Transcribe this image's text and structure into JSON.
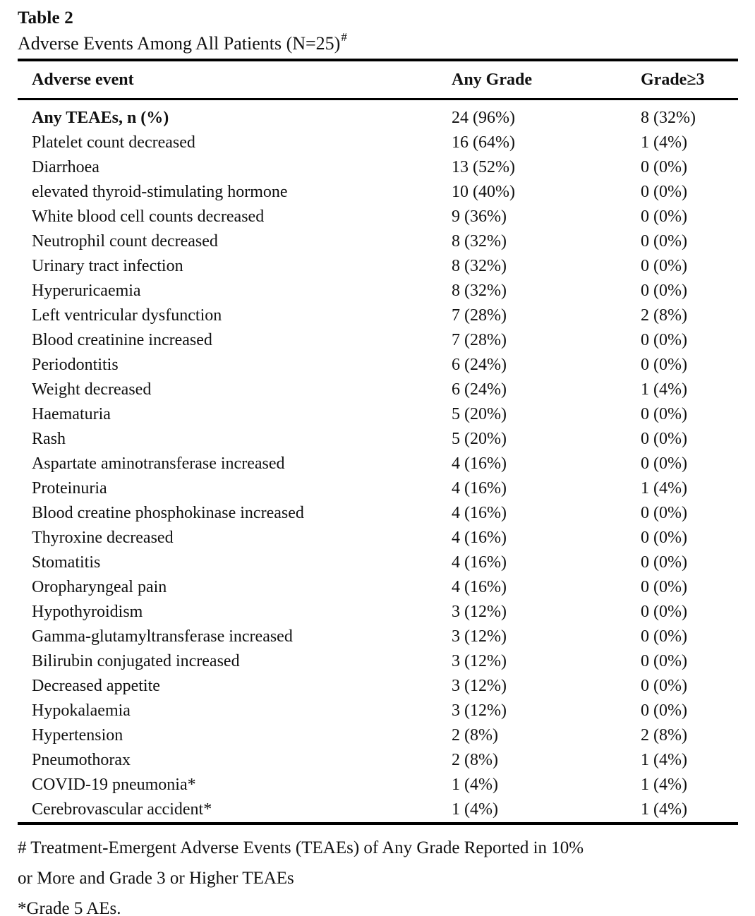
{
  "title": "Table 2",
  "caption": "Adverse Events Among All Patients (N=25)",
  "caption_marker": "#",
  "table": {
    "columns": [
      "Adverse event",
      "Any Grade",
      "Grade≥3"
    ],
    "rows": [
      {
        "event": "Any TEAEs, n (%)",
        "any_grade": "24 (96%)",
        "grade3": "8 (32%)",
        "bold": true
      },
      {
        "event": "Platelet count decreased",
        "any_grade": "16 (64%)",
        "grade3": "1 (4%)",
        "bold": false
      },
      {
        "event": "Diarrhoea",
        "any_grade": "13 (52%)",
        "grade3": "0 (0%)",
        "bold": false
      },
      {
        "event": "elevated thyroid-stimulating hormone",
        "any_grade": "10 (40%)",
        "grade3": "0 (0%)",
        "bold": false
      },
      {
        "event": "White blood cell counts decreased",
        "any_grade": "9 (36%)",
        "grade3": "0 (0%)",
        "bold": false
      },
      {
        "event": "Neutrophil count decreased",
        "any_grade": "8 (32%)",
        "grade3": "0 (0%)",
        "bold": false
      },
      {
        "event": "Urinary tract infection",
        "any_grade": "8 (32%)",
        "grade3": "0 (0%)",
        "bold": false
      },
      {
        "event": "Hyperuricaemia",
        "any_grade": "8 (32%)",
        "grade3": "0 (0%)",
        "bold": false
      },
      {
        "event": "Left ventricular dysfunction",
        "any_grade": "7 (28%)",
        "grade3": "2 (8%)",
        "bold": false
      },
      {
        "event": "Blood creatinine increased",
        "any_grade": "7 (28%)",
        "grade3": "0 (0%)",
        "bold": false
      },
      {
        "event": "Periodontitis",
        "any_grade": "6 (24%)",
        "grade3": "0 (0%)",
        "bold": false
      },
      {
        "event": "Weight decreased",
        "any_grade": "6 (24%)",
        "grade3": "1 (4%)",
        "bold": false
      },
      {
        "event": "Haematuria",
        "any_grade": "5 (20%)",
        "grade3": "0 (0%)",
        "bold": false
      },
      {
        "event": "Rash",
        "any_grade": "5 (20%)",
        "grade3": "0 (0%)",
        "bold": false
      },
      {
        "event": "Aspartate aminotransferase increased",
        "any_grade": "4 (16%)",
        "grade3": "0 (0%)",
        "bold": false
      },
      {
        "event": "Proteinuria",
        "any_grade": "4 (16%)",
        "grade3": "1 (4%)",
        "bold": false
      },
      {
        "event": "Blood creatine phosphokinase increased",
        "any_grade": "4 (16%)",
        "grade3": "0 (0%)",
        "bold": false
      },
      {
        "event": "Thyroxine decreased",
        "any_grade": "4 (16%)",
        "grade3": "0 (0%)",
        "bold": false
      },
      {
        "event": "Stomatitis",
        "any_grade": "4 (16%)",
        "grade3": "0 (0%)",
        "bold": false
      },
      {
        "event": "Oropharyngeal pain",
        "any_grade": "4 (16%)",
        "grade3": "0 (0%)",
        "bold": false
      },
      {
        "event": "Hypothyroidism",
        "any_grade": "3 (12%)",
        "grade3": "0 (0%)",
        "bold": false
      },
      {
        "event": "Gamma-glutamyltransferase increased",
        "any_grade": "3 (12%)",
        "grade3": "0 (0%)",
        "bold": false
      },
      {
        "event": "Bilirubin conjugated increased",
        "any_grade": "3 (12%)",
        "grade3": "0 (0%)",
        "bold": false
      },
      {
        "event": "Decreased appetite",
        "any_grade": "3 (12%)",
        "grade3": "0 (0%)",
        "bold": false
      },
      {
        "event": "Hypokalaemia",
        "any_grade": "3 (12%)",
        "grade3": "0 (0%)",
        "bold": false
      },
      {
        "event": "Hypertension",
        "any_grade": "2 (8%)",
        "grade3": "2 (8%)",
        "bold": false
      },
      {
        "event": "Pneumothorax",
        "any_grade": "2 (8%)",
        "grade3": "1 (4%)",
        "bold": false
      },
      {
        "event": "COVID-19 pneumonia*",
        "any_grade": "1 (4%)",
        "grade3": "1 (4%)",
        "bold": false
      },
      {
        "event": "Cerebrovascular accident*",
        "any_grade": "1 (4%)",
        "grade3": "1 (4%)",
        "bold": false
      }
    ]
  },
  "footnote_lines": [
    "# Treatment-Emergent Adverse Events (TEAEs) of Any Grade Reported in 10%",
    "or More and Grade 3 or Higher TEAEs",
    "*Grade 5 AEs."
  ],
  "colors": {
    "text": "#111111",
    "rule": "#000000",
    "background": "#ffffff"
  }
}
